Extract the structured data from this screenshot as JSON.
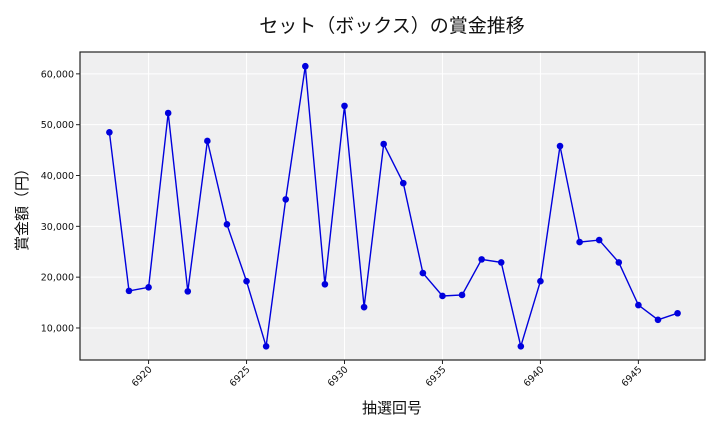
{
  "chart_data": {
    "type": "line",
    "title": "セット（ボックス）の賞金推移",
    "xlabel": "抽選回号",
    "ylabel": "賞金額（円）",
    "x": [
      6918,
      6919,
      6920,
      6921,
      6922,
      6923,
      6924,
      6925,
      6926,
      6927,
      6928,
      6929,
      6930,
      6931,
      6932,
      6933,
      6934,
      6935,
      6936,
      6937,
      6938,
      6939,
      6940,
      6941,
      6942,
      6943,
      6944,
      6945,
      6946,
      6947
    ],
    "series": [
      {
        "name": "セット（ボックス）",
        "color": "#0000dd",
        "values": [
          48500,
          17300,
          18000,
          52300,
          17200,
          46800,
          30400,
          19200,
          6400,
          35300,
          61500,
          18600,
          53700,
          14100,
          46200,
          38500,
          20800,
          16300,
          16500,
          23500,
          22900,
          6400,
          19200,
          45800,
          26900,
          27300,
          22900,
          14500,
          11600,
          12900
        ]
      }
    ],
    "xticks": [
      6920,
      6925,
      6930,
      6935,
      6940,
      6945
    ],
    "yticks": [
      10000,
      20000,
      30000,
      40000,
      50000,
      60000
    ],
    "ytick_labels": [
      "10,000",
      "20,000",
      "30,000",
      "40,000",
      "50,000",
      "60,000"
    ],
    "xlim": [
      6916.5,
      6948.4
    ],
    "ylim": [
      3700,
      64300
    ],
    "grid": true,
    "legend": false,
    "background": "#efeff0",
    "grid_color": "#ffffff"
  }
}
